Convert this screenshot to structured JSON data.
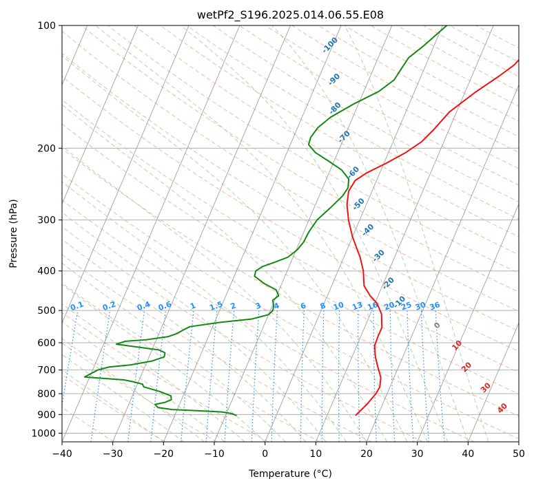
{
  "chart_data": {
    "type": "line",
    "title": "wetPf2_S196.2025.014.06.55.E08",
    "xlabel": "Temperature (°C)",
    "ylabel": "Pressure (hPa)",
    "xlim": [
      -40,
      50
    ],
    "ylim": [
      1050,
      100
    ],
    "y_scale": "log",
    "grid": true,
    "x_ticks": [
      -40,
      -30,
      -20,
      -10,
      0,
      10,
      20,
      30,
      40,
      50
    ],
    "y_ticks": [
      100,
      200,
      300,
      400,
      500,
      600,
      700,
      800,
      900,
      1000
    ],
    "colors": {
      "temperature": "#ee1111",
      "dewpoint": "#118811",
      "dry_adiabat": "#f4a582",
      "moist_adiabat": "#8fc98f",
      "mixing_ratio": "#1e90ff",
      "isotherm": "#999999",
      "moist_label": "#1f77b4",
      "dry_label": "#d62728"
    },
    "series": [
      {
        "name": "temperature",
        "points": [
          [
            15.6,
            905
          ],
          [
            16.2,
            880
          ],
          [
            17.0,
            845
          ],
          [
            17.8,
            800
          ],
          [
            18.0,
            770
          ],
          [
            17.4,
            730
          ],
          [
            16.0,
            690
          ],
          [
            14.6,
            650
          ],
          [
            13.5,
            610
          ],
          [
            13.4,
            580
          ],
          [
            13.4,
            550
          ],
          [
            12.2,
            510
          ],
          [
            10.4,
            480
          ],
          [
            8.4,
            460
          ],
          [
            6.4,
            435
          ],
          [
            5.6,
            415
          ],
          [
            5.0,
            400
          ],
          [
            3.2,
            370
          ],
          [
            0.0,
            330
          ],
          [
            -2.2,
            300
          ],
          [
            -3.8,
            275
          ],
          [
            -4.6,
            255
          ],
          [
            -4.2,
            240
          ],
          [
            -2.6,
            230
          ],
          [
            0.4,
            218
          ],
          [
            3.4,
            205
          ],
          [
            5.6,
            193
          ],
          [
            7.0,
            180
          ],
          [
            8.6,
            163
          ],
          [
            12.0,
            146
          ],
          [
            15.4,
            133
          ],
          [
            17.4,
            125
          ],
          [
            18.4,
            118
          ],
          [
            19.0,
            110
          ],
          [
            19.6,
            104
          ],
          [
            20.0,
            100
          ]
        ]
      },
      {
        "name": "dewpoint",
        "points": [
          [
            -7.8,
            905
          ],
          [
            -9.0,
            895
          ],
          [
            -11.0,
            887
          ],
          [
            -15.0,
            882
          ],
          [
            -21.0,
            875
          ],
          [
            -24.0,
            865
          ],
          [
            -24.8,
            850
          ],
          [
            -23.0,
            840
          ],
          [
            -22.0,
            828
          ],
          [
            -22.4,
            810
          ],
          [
            -25.0,
            790
          ],
          [
            -28.5,
            770
          ],
          [
            -29.0,
            758
          ],
          [
            -31.0,
            748
          ],
          [
            -33.0,
            740
          ],
          [
            -41.0,
            728
          ],
          [
            -39.0,
            700
          ],
          [
            -37.0,
            688
          ],
          [
            -33.0,
            680
          ],
          [
            -29.0,
            665
          ],
          [
            -27.0,
            650
          ],
          [
            -27.2,
            635
          ],
          [
            -28.6,
            625
          ],
          [
            -33.0,
            615
          ],
          [
            -37.5,
            605
          ],
          [
            -36.0,
            595
          ],
          [
            -32.0,
            590
          ],
          [
            -28.0,
            580
          ],
          [
            -26.5,
            570
          ],
          [
            -25.5,
            558
          ],
          [
            -24.5,
            548
          ],
          [
            -19.0,
            535
          ],
          [
            -13.0,
            525
          ],
          [
            -10.0,
            512
          ],
          [
            -9.5,
            500
          ],
          [
            -9.8,
            485
          ],
          [
            -10.4,
            472
          ],
          [
            -9.6,
            460
          ],
          [
            -10.6,
            445
          ],
          [
            -13.4,
            430
          ],
          [
            -16.0,
            412
          ],
          [
            -16.2,
            400
          ],
          [
            -15.2,
            390
          ],
          [
            -13.0,
            380
          ],
          [
            -11.0,
            370
          ],
          [
            -9.8,
            355
          ],
          [
            -9.2,
            340
          ],
          [
            -9.0,
            320
          ],
          [
            -8.4,
            300
          ],
          [
            -6.8,
            280
          ],
          [
            -5.4,
            262
          ],
          [
            -5.0,
            250
          ],
          [
            -5.6,
            238
          ],
          [
            -7.8,
            226
          ],
          [
            -10.8,
            216
          ],
          [
            -14.4,
            205
          ],
          [
            -16.4,
            196
          ],
          [
            -16.6,
            188
          ],
          [
            -16.0,
            178
          ],
          [
            -14.4,
            168
          ],
          [
            -11.0,
            156
          ],
          [
            -7.0,
            145
          ],
          [
            -5.0,
            136
          ],
          [
            -4.4,
            126
          ],
          [
            -4.0,
            120
          ],
          [
            -2.0,
            112
          ],
          [
            -0.4,
            105
          ],
          [
            0.8,
            100
          ]
        ]
      }
    ],
    "dry_adiabat_labels": [
      "0",
      "10",
      "20",
      "30",
      "40"
    ],
    "moist_adiabat_labels": [
      "-100",
      "-90",
      "-80",
      "-70",
      "-60",
      "-50",
      "-40",
      "-30",
      "-20",
      "-10"
    ],
    "mixing_ratio_labels": [
      "0.1",
      "0.2",
      "0.4",
      "0.6",
      "1",
      "1.5",
      "2",
      "3",
      "4",
      "6",
      "8",
      "10",
      "13",
      "16",
      "20",
      "25",
      "30",
      "36"
    ]
  }
}
